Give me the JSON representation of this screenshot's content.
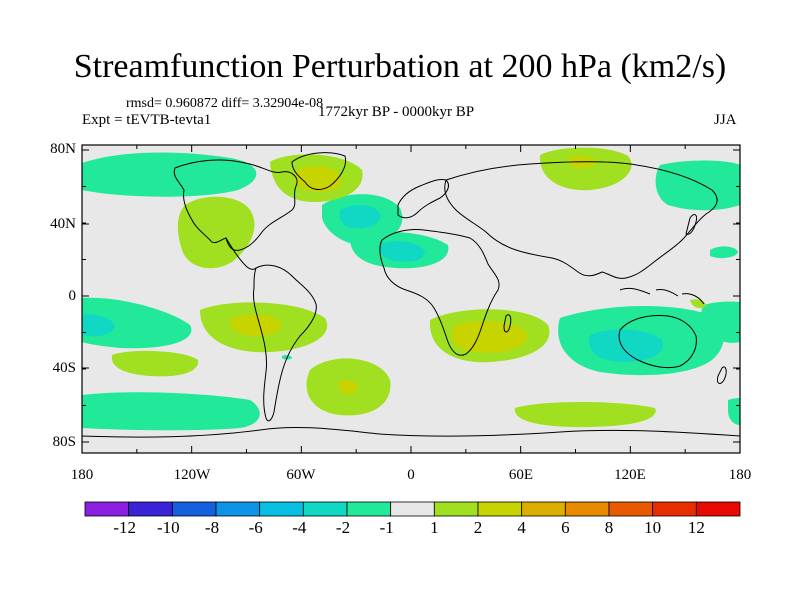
{
  "title": "Streamfunction Perturbation at 200 hPa (km2/s)",
  "stats_line": "rmsd= 0.960872 diff= 3.32904e-08",
  "experiment": "Expt = tEVTB-tevta1",
  "period": "1772kyr BP - 0000kyr BP",
  "season": "JJA",
  "lat_labels": [
    "80N",
    "40N",
    "0",
    "40S",
    "80S"
  ],
  "lon_labels": [
    "180",
    "120W",
    "60W",
    "0",
    "60E",
    "120E",
    "180"
  ],
  "colorbar": {
    "labels": [
      "-12",
      "-10",
      "-8",
      "-6",
      "-4",
      "-2",
      "-1",
      "1",
      "2",
      "4",
      "6",
      "8",
      "10",
      "12"
    ],
    "colors": [
      "#8a1fe0",
      "#3a22d6",
      "#1660e0",
      "#0d94e6",
      "#07bfe0",
      "#10d8c4",
      "#22e89a",
      "#e8e8e8",
      "#a0e020",
      "#c8d400",
      "#dcae00",
      "#e68a00",
      "#e85a00",
      "#e82e00",
      "#e80a00"
    ]
  },
  "map": {
    "background": "#e8e8e8",
    "coast_color": "#000000"
  }
}
